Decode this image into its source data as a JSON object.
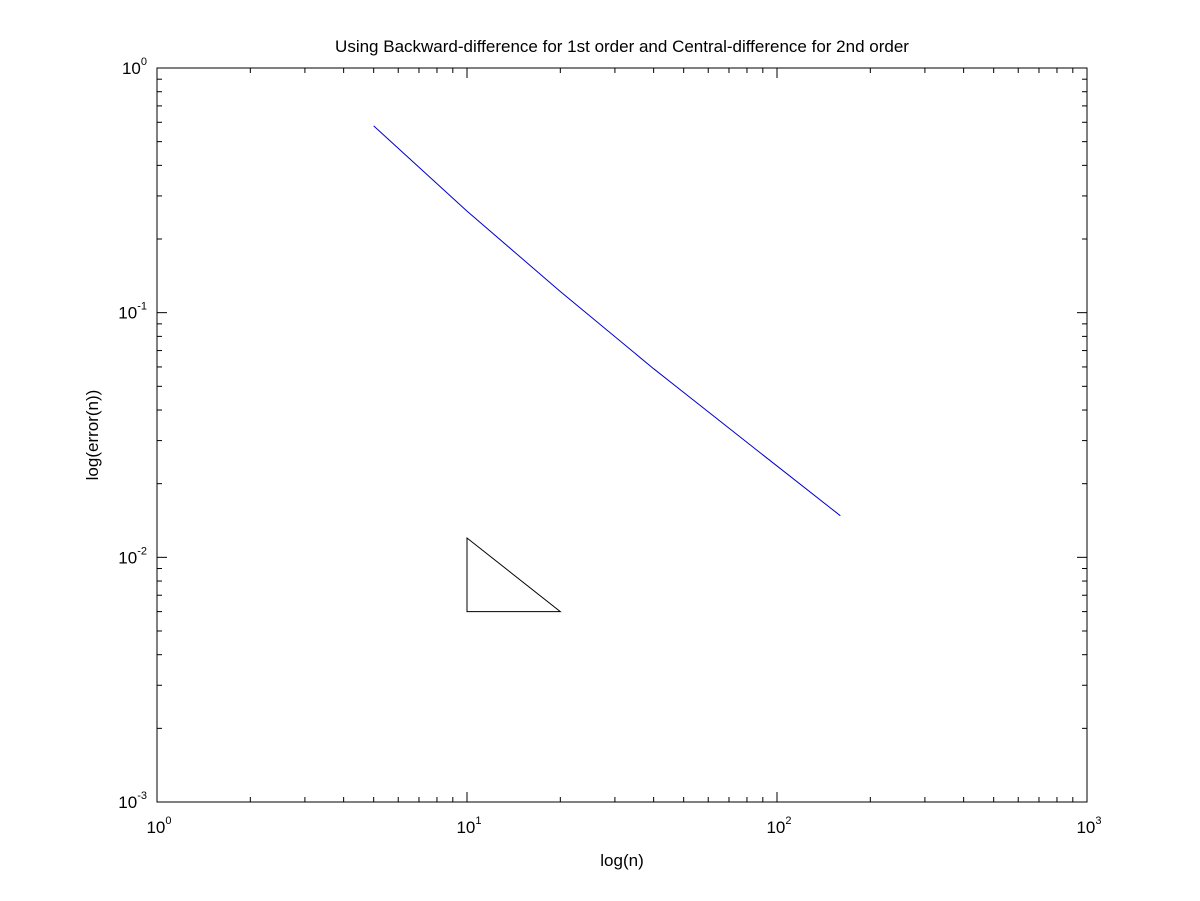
{
  "chart_data": {
    "type": "line",
    "title": "Using Backward-difference for 1st order and Central-difference for 2nd order",
    "xlabel": "log(n)",
    "ylabel": "log(error(n))",
    "xscale": "log",
    "yscale": "log",
    "xlim": [
      1,
      1000
    ],
    "ylim": [
      0.001,
      1
    ],
    "grid": false,
    "x_tick_labels": [
      {
        "value": 1,
        "base": "10",
        "exp": "0"
      },
      {
        "value": 10,
        "base": "10",
        "exp": "1"
      },
      {
        "value": 100,
        "base": "10",
        "exp": "2"
      },
      {
        "value": 1000,
        "base": "10",
        "exp": "3"
      }
    ],
    "y_tick_labels": [
      {
        "value": 1,
        "base": "10",
        "exp": "0"
      },
      {
        "value": 0.1,
        "base": "10",
        "exp": "-1"
      },
      {
        "value": 0.01,
        "base": "10",
        "exp": "-2"
      },
      {
        "value": 0.001,
        "base": "10",
        "exp": "-3"
      }
    ],
    "series": [
      {
        "color": "#0000cc",
        "x": [
          5,
          10,
          20,
          40,
          80,
          160
        ],
        "y": [
          0.58,
          0.26,
          0.122,
          0.059,
          0.0295,
          0.0148
        ]
      }
    ],
    "annotations": [
      {
        "kind": "slope-triangle",
        "color": "#000000",
        "vertices": [
          [
            10,
            0.012
          ],
          [
            10,
            0.006
          ],
          [
            20,
            0.006
          ]
        ]
      }
    ]
  }
}
